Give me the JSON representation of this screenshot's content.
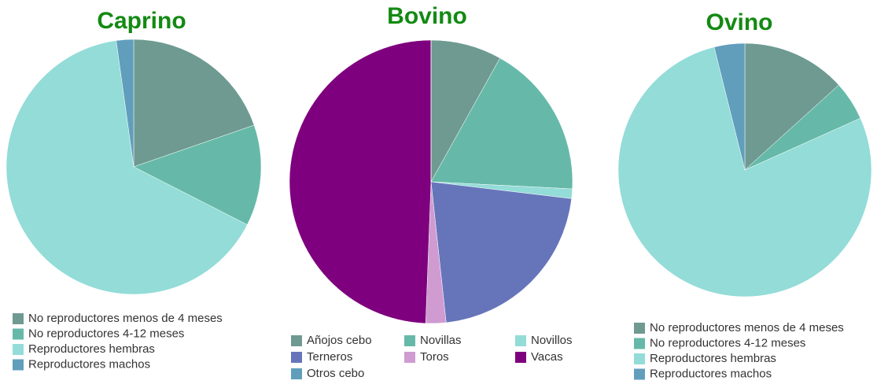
{
  "chart_data": [
    {
      "type": "pie",
      "title": "Caprino",
      "categories": [
        "No reproductores menos de 4 meses",
        "No reproductores 4-12 meses",
        "Reproductores hembras",
        "Reproductores machos"
      ],
      "values": [
        19.7,
        12.8,
        65.3,
        2.2
      ],
      "colors": [
        "#6e9a91",
        "#66b9a8",
        "#93dcd8",
        "#609ebc"
      ]
    },
    {
      "type": "pie",
      "title": "Bovino",
      "categories": [
        "Añojos cebo",
        "Novillas",
        "Novillos",
        "Terneros",
        "Toros",
        "Vacas",
        "Otros cebo"
      ],
      "values": [
        8.1,
        17.7,
        1.1,
        21.4,
        2.3,
        49.4,
        0
      ],
      "colors": [
        "#6e9a91",
        "#66b9a8",
        "#93dcd8",
        "#6675ba",
        "#cf9bd1",
        "#7e007e",
        "#609ebc"
      ]
    },
    {
      "type": "pie",
      "title": "Ovino",
      "categories": [
        "No reproductores menos de 4 meses",
        "No reproductores 4-12 meses",
        "Reproductores hembras",
        "Reproductores machos"
      ],
      "values": [
        13.3,
        5.0,
        77.8,
        3.9
      ],
      "colors": [
        "#6e9a91",
        "#66b9a8",
        "#93dcd8",
        "#609ebc"
      ]
    }
  ]
}
